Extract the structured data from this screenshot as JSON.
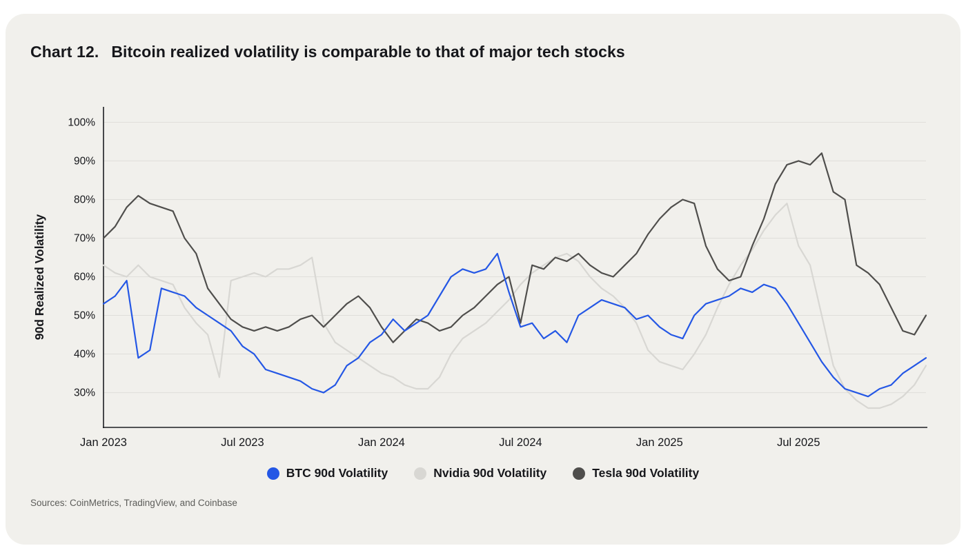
{
  "title": {
    "prefix": "Chart 12.",
    "text": "Bitcoin realized volatility is comparable to that of major tech stocks"
  },
  "source": "Sources: CoinMetrics, TradingView, and Coinbase",
  "colors": {
    "card_background": "#f1f0ec",
    "grid_line": "#dfdeda",
    "axis_line": "#1c1d21",
    "text_dark": "#16171b",
    "text_muted": "#5c5c59"
  },
  "chart_data": {
    "type": "line",
    "title": "Bitcoin realized volatility is comparable to that of major tech stocks",
    "xlabel": "",
    "ylabel": "90d Realized Volatility",
    "x_unit": "months since Jan 2023",
    "x_start": 0,
    "x_step": 0.5,
    "x_ticks": [
      {
        "t": 0,
        "label": "Jan 2023"
      },
      {
        "t": 6,
        "label": "Jul 2023"
      },
      {
        "t": 12,
        "label": "Jan 2024"
      },
      {
        "t": 18,
        "label": "Jul 2024"
      },
      {
        "t": 24,
        "label": "Jan 2025"
      },
      {
        "t": 30,
        "label": "Jul 2025"
      }
    ],
    "y_ticks": [
      100,
      90,
      80,
      70,
      60,
      50,
      40,
      30
    ],
    "y_tick_suffix": "%",
    "ylim": [
      21,
      104
    ],
    "grid": true,
    "legend_position": "bottom",
    "draw_order": [
      1,
      2,
      0
    ],
    "series": [
      {
        "name": "BTC 90d Volatility",
        "color": "#2457e5",
        "values": [
          53,
          55,
          59,
          39,
          41,
          57,
          56,
          55,
          52,
          50,
          48,
          46,
          42,
          40,
          36,
          35,
          34,
          33,
          31,
          30,
          32,
          37,
          39,
          43,
          45,
          49,
          46,
          48,
          50,
          55,
          60,
          62,
          61,
          62,
          66,
          56,
          47,
          48,
          44,
          46,
          43,
          50,
          52,
          54,
          53,
          52,
          49,
          50,
          47,
          45,
          44,
          50,
          53,
          54,
          55,
          57,
          56,
          58,
          57,
          53,
          48,
          43,
          38,
          34,
          31,
          30,
          29,
          31,
          32,
          35,
          37,
          39
        ]
      },
      {
        "name": "Nvidia 90d Volatility",
        "color": "#d8d7d3",
        "values": [
          63,
          61,
          60,
          63,
          60,
          59,
          58,
          52,
          48,
          45,
          34,
          59,
          60,
          61,
          60,
          62,
          62,
          63,
          65,
          48,
          43,
          41,
          39,
          37,
          35,
          34,
          32,
          31,
          31,
          34,
          40,
          44,
          46,
          48,
          51,
          54,
          58,
          61,
          63,
          65,
          66,
          64,
          60,
          57,
          55,
          52,
          48,
          41,
          38,
          37,
          36,
          40,
          45,
          52,
          58,
          63,
          67,
          72,
          76,
          79,
          68,
          63,
          50,
          37,
          31,
          28,
          26,
          26,
          27,
          29,
          32,
          37
        ]
      },
      {
        "name": "Tesla 90d Volatility",
        "color": "#4f4e4c",
        "values": [
          70,
          73,
          78,
          81,
          79,
          78,
          77,
          70,
          66,
          57,
          53,
          49,
          47,
          46,
          47,
          46,
          47,
          49,
          50,
          47,
          50,
          53,
          55,
          52,
          47,
          43,
          46,
          49,
          48,
          46,
          47,
          50,
          52,
          55,
          58,
          60,
          48,
          63,
          62,
          65,
          64,
          66,
          63,
          61,
          60,
          63,
          66,
          71,
          75,
          78,
          80,
          79,
          68,
          62,
          59,
          60,
          68,
          75,
          84,
          89,
          90,
          89,
          92,
          82,
          80,
          63,
          61,
          58,
          52,
          46,
          45,
          50
        ]
      }
    ]
  }
}
